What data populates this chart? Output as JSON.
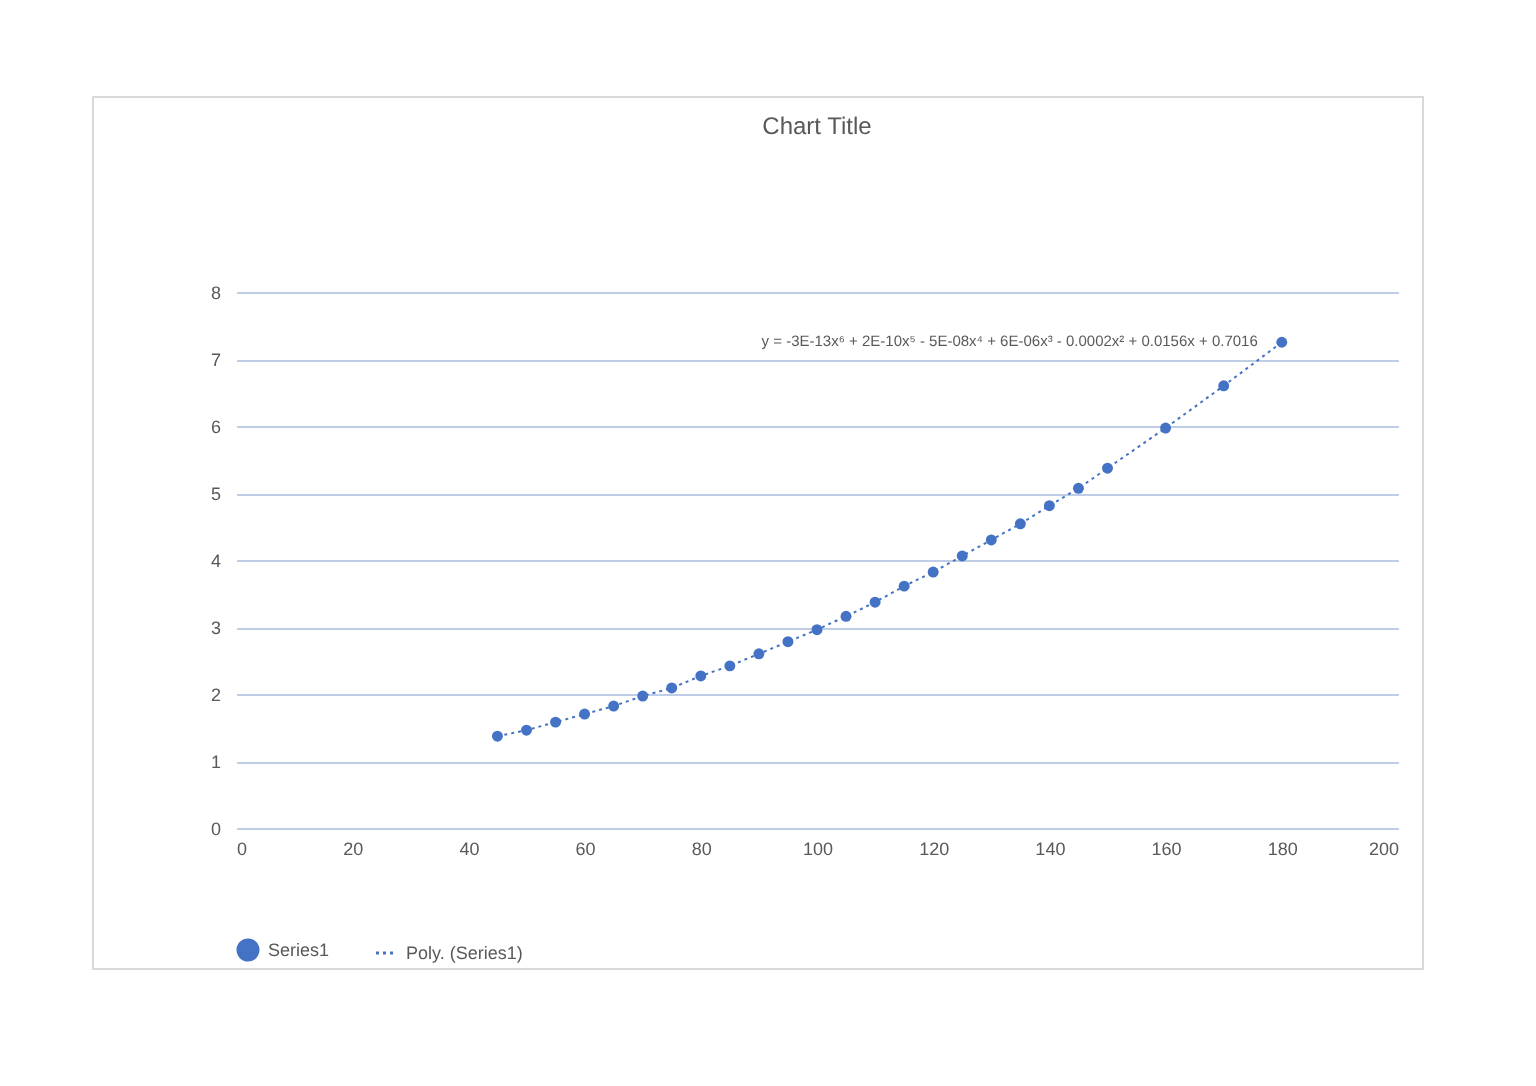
{
  "chart_data": {
    "type": "scatter",
    "title": "Chart Title",
    "x": [
      45,
      50,
      55,
      60,
      65,
      70,
      75,
      80,
      85,
      90,
      95,
      100,
      105,
      110,
      115,
      120,
      125,
      130,
      135,
      140,
      145,
      150,
      160,
      170,
      180
    ],
    "series": [
      {
        "name": "Series1",
        "color": "#4472c4",
        "marker": "circle",
        "values": [
          1.37,
          1.46,
          1.58,
          1.7,
          1.82,
          1.97,
          2.09,
          2.27,
          2.42,
          2.6,
          2.78,
          2.96,
          3.16,
          3.37,
          3.61,
          3.82,
          4.06,
          4.3,
          4.54,
          4.81,
          5.07,
          5.37,
          5.97,
          6.6,
          7.25
        ]
      },
      {
        "name": "Poly. (Series1)",
        "type": "line",
        "color": "#4472c4",
        "line_style": "dotted",
        "x": [
          45,
          50,
          55,
          60,
          65,
          70,
          75,
          80,
          85,
          90,
          95,
          100,
          105,
          110,
          115,
          120,
          125,
          130,
          135,
          140,
          145,
          150,
          160,
          170,
          180
        ],
        "values": [
          1.37,
          1.46,
          1.58,
          1.7,
          1.82,
          1.97,
          2.09,
          2.27,
          2.42,
          2.6,
          2.78,
          2.96,
          3.16,
          3.37,
          3.61,
          3.82,
          4.06,
          4.3,
          4.54,
          4.81,
          5.07,
          5.37,
          5.97,
          6.6,
          7.25
        ]
      }
    ],
    "annotations": [
      "y = -3E-13x⁶ + 2E-10x⁵ - 5E-08x⁴ + 6E-06x³ - 0.0002x² + 0.0156x + 0.7016"
    ],
    "xlim": [
      0,
      200
    ],
    "xticks": [
      0,
      20,
      40,
      60,
      80,
      100,
      120,
      140,
      160,
      180,
      200
    ],
    "ylim": [
      0,
      8
    ],
    "yticks": [
      0,
      1,
      2,
      3,
      4,
      5,
      6,
      7,
      8
    ],
    "grid": "y",
    "legend": "bottom"
  }
}
